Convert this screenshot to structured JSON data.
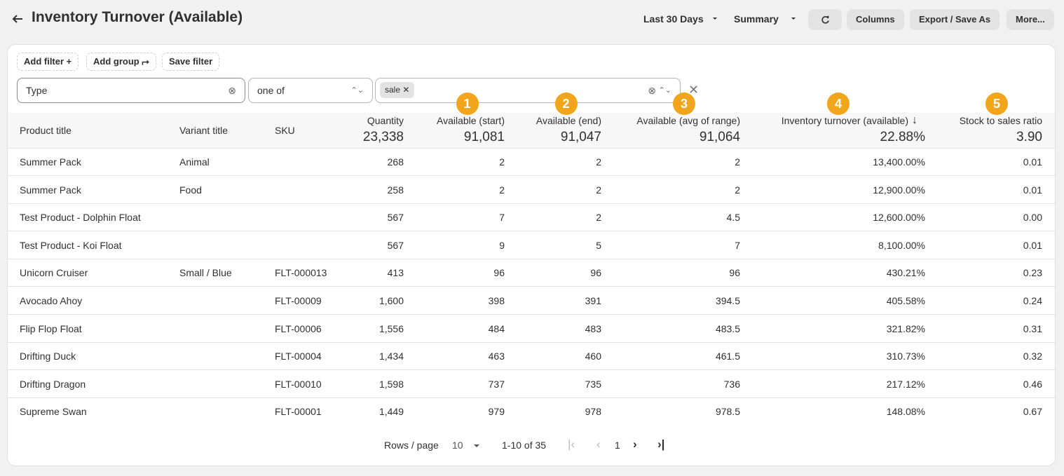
{
  "header": {
    "title": "Inventory Turnover (Available)",
    "date_range": "Last 30 Days",
    "view": "Summary",
    "buttons": [
      "Columns",
      "Export / Save As",
      "More..."
    ]
  },
  "filters": {
    "actions": [
      "Add filter",
      "Add group",
      "Save filter"
    ],
    "field": "Type",
    "operator": "one of",
    "chips": [
      "sale"
    ]
  },
  "table": {
    "columns": [
      {
        "label": "Product title"
      },
      {
        "label": "Variant title"
      },
      {
        "label": "SKU"
      },
      {
        "label": "Quantity",
        "total": "23,338"
      },
      {
        "label": "Available (start)",
        "total": "91,081",
        "badge": "1"
      },
      {
        "label": "Available (end)",
        "total": "91,047",
        "badge": "2"
      },
      {
        "label": "Available (avg of range)",
        "total": "91,064",
        "badge": "3"
      },
      {
        "label": "Inventory turnover (available)",
        "total": "22.88%",
        "badge": "4"
      },
      {
        "label": "Stock to sales ratio",
        "total": "3.90",
        "badge": "5"
      }
    ],
    "rows": [
      [
        "Summer Pack",
        "Animal",
        null,
        "268",
        "2",
        "2",
        "2",
        "13,400.00%",
        "0.01"
      ],
      [
        "Summer Pack",
        "Food",
        null,
        "258",
        "2",
        "2",
        "2",
        "12,900.00%",
        "0.01"
      ],
      [
        "Test Product - Dolphin Float",
        null,
        null,
        "567",
        "7",
        "2",
        "4.5",
        "12,600.00%",
        "0.00"
      ],
      [
        "Test Product - Koi Float",
        null,
        null,
        "567",
        "9",
        "5",
        "7",
        "8,100.00%",
        "0.01"
      ],
      [
        "Unicorn Cruiser",
        "Small / Blue",
        "FLT-000013",
        "413",
        "96",
        "96",
        "96",
        "430.21%",
        "0.23"
      ],
      [
        "Avocado Ahoy",
        null,
        "FLT-00009",
        "1,600",
        "398",
        "391",
        "394.5",
        "405.58%",
        "0.24"
      ],
      [
        "Flip Flop Float",
        null,
        "FLT-00006",
        "1,556",
        "484",
        "483",
        "483.5",
        "321.82%",
        "0.31"
      ],
      [
        "Drifting Duck",
        null,
        "FLT-00004",
        "1,434",
        "463",
        "460",
        "461.5",
        "310.73%",
        "0.32"
      ],
      [
        "Drifting Dragon",
        null,
        "FLT-00010",
        "1,598",
        "737",
        "735",
        "736",
        "217.12%",
        "0.46"
      ],
      [
        "Supreme Swan",
        null,
        "FLT-00001",
        "1,449",
        "979",
        "978",
        "978.5",
        "148.08%",
        "0.67"
      ]
    ]
  },
  "pagination": {
    "rows_per_page_label": "Rows / page",
    "rows_per_page": "10",
    "range": "1-10 of 35",
    "page": "1"
  }
}
